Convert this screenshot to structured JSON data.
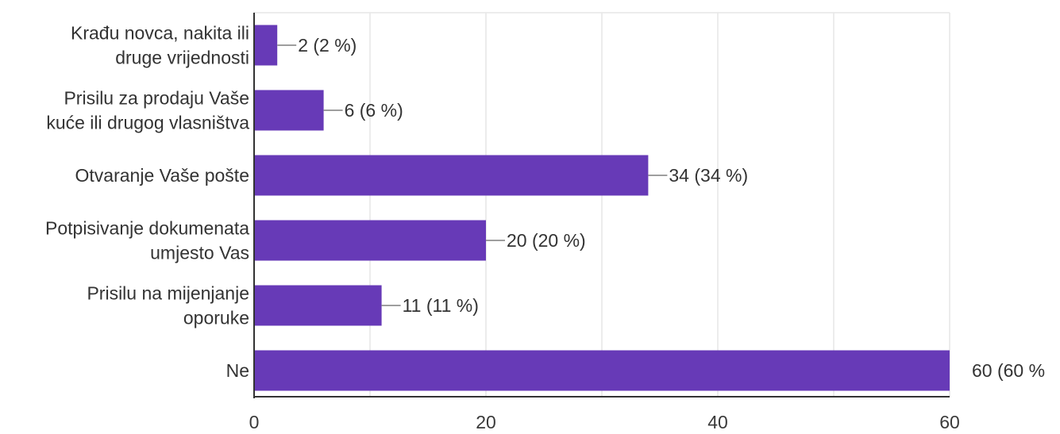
{
  "chart_data": {
    "type": "bar",
    "orientation": "horizontal",
    "categories": [
      [
        "Krađu novca, nakita ili",
        "druge vrijednosti"
      ],
      [
        "Prisilu za prodaju Vaše",
        "kuće ili drugog vlasništva"
      ],
      [
        "Otvaranje Vaše pošte"
      ],
      [
        "Potpisivanje dokumenata",
        "umjesto Vas"
      ],
      [
        "Prisilu na mijenjanje",
        "oporuke"
      ],
      [
        "Ne"
      ]
    ],
    "values": [
      2,
      6,
      34,
      20,
      11,
      60
    ],
    "data_labels": [
      "2 (2 %)",
      "6 (6 %)",
      "34 (34 %)",
      "20 (20 %)",
      "11 (11 %)",
      "60 (60 %"
    ],
    "xlim": [
      0,
      60
    ],
    "xticks": [
      0,
      20,
      40,
      60
    ],
    "xtick_labels": [
      "0",
      "20",
      "40",
      "60"
    ],
    "grid": true,
    "colors": {
      "bar": "#673ab7",
      "grid": "#e6e6e6",
      "axis": "#333333",
      "leader": "#9e9e9e",
      "text": "#333333"
    }
  }
}
